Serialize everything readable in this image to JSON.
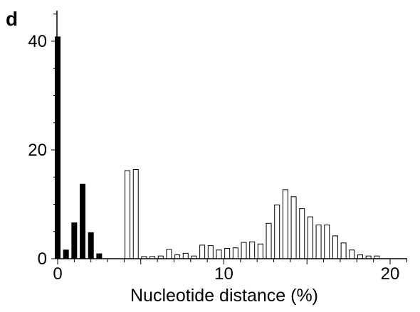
{
  "panel_label": "d",
  "chart_data": {
    "type": "bar",
    "xlabel": "Nucleotide distance (%)",
    "ylabel": "",
    "xlim": [
      0,
      21
    ],
    "ylim": [
      0,
      45
    ],
    "x_ticks": [
      0,
      10,
      20
    ],
    "x_tick_labels": [
      "0",
      "10",
      "20"
    ],
    "y_ticks": [
      0,
      20,
      40
    ],
    "y_tick_labels": [
      "0",
      "20",
      "40"
    ],
    "bar_width": 0.3,
    "grid": false,
    "series": [
      {
        "fill": "#000000",
        "x": [
          0,
          0.5,
          1,
          1.5,
          2,
          2.5
        ],
        "values": [
          40.8,
          1.6,
          6.6,
          13.7,
          4.8,
          0.9
        ]
      },
      {
        "fill": "#ffffff",
        "x": [
          4.2,
          4.7,
          5.2,
          5.7,
          6.2,
          6.7,
          7.2,
          7.7,
          8.2,
          8.7,
          9.2,
          9.7,
          10.2,
          10.7,
          11.2,
          11.7,
          12.2,
          12.7,
          13.2,
          13.7,
          14.2,
          14.7,
          15.2,
          15.7,
          16.2,
          16.7,
          17.2,
          17.7,
          18.2,
          18.7,
          19.2
        ],
        "values": [
          16.2,
          16.4,
          0.4,
          0.4,
          0.5,
          1.7,
          0.7,
          1.0,
          0.5,
          2.5,
          2.4,
          1.6,
          1.9,
          2.0,
          3.0,
          3.1,
          2.7,
          6.5,
          9.9,
          12.7,
          11.4,
          9.2,
          7.7,
          6.2,
          6.2,
          4.2,
          2.9,
          1.6,
          0.7,
          0.5,
          0.5
        ]
      }
    ]
  }
}
